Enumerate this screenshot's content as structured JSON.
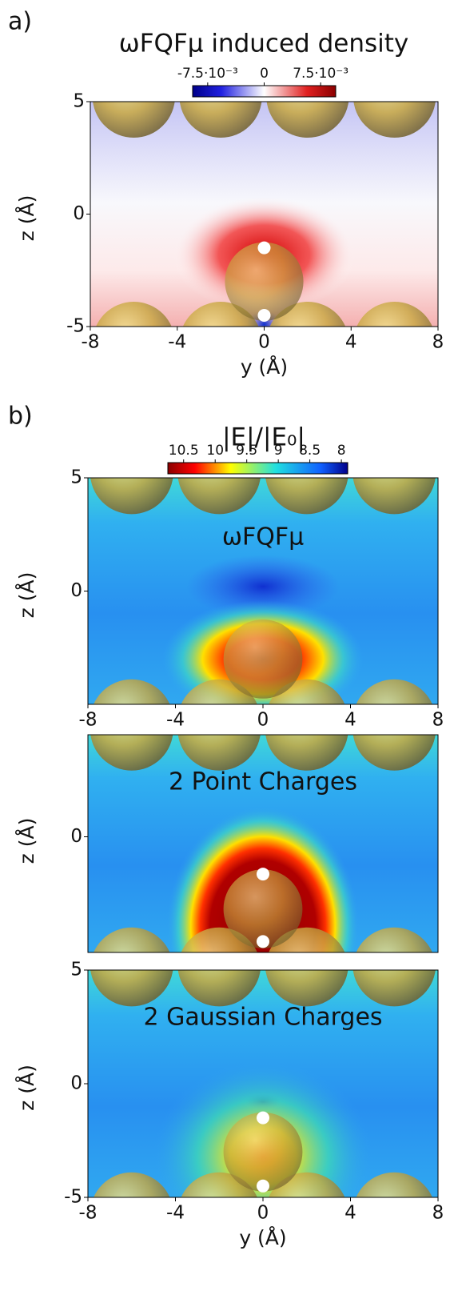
{
  "figure": {
    "panels": [
      {
        "label": "a)",
        "title": "ωFQFμ induced density",
        "colorbar": {
          "lim": [
            -0.0095,
            0.0095
          ],
          "ticks": [
            {
              "value": -0.0075,
              "label": "-7.5·10⁻³"
            },
            0,
            {
              "value": 0.0075,
              "label": "7.5·10⁻³"
            }
          ]
        },
        "plots": [
          {
            "xlabel": "y (Å)",
            "ylabel": "z (Å)",
            "xlim": [
              -8,
              8
            ],
            "ylim": [
              -5,
              5
            ],
            "xticks": [
              -8,
              -4,
              0,
              4,
              8
            ],
            "yticks": [
              -5,
              0,
              5
            ]
          }
        ]
      },
      {
        "label": "b)",
        "title": "|E|/|E₀|",
        "colorbar": {
          "lim": [
            10.75,
            7.9
          ],
          "ticks": [
            10.5,
            10,
            9.5,
            9,
            8.5,
            8
          ]
        },
        "plots": [
          {
            "annotation": "ωFQFμ",
            "ylabel": "z (Å)",
            "xlim": [
              -8,
              8
            ],
            "ylim": [
              -5,
              5
            ],
            "xticks": [
              -8,
              -4,
              0,
              4,
              8
            ],
            "yticks": [
              0,
              5
            ]
          },
          {
            "annotation": "2 Point Charges",
            "ylabel": "z (Å)",
            "xlim": [
              -8,
              8
            ],
            "ylim": [
              -5.1,
              4.5
            ],
            "yticks": [
              0
            ]
          },
          {
            "annotation": "2 Gaussian Charges",
            "xlabel": "y (Å)",
            "ylabel": "z (Å)",
            "xlim": [
              -8,
              8
            ],
            "ylim": [
              -5,
              5
            ],
            "xticks": [
              -8,
              -4,
              0,
              4,
              8
            ],
            "yticks": [
              -5,
              0,
              5
            ]
          }
        ]
      }
    ]
  }
}
